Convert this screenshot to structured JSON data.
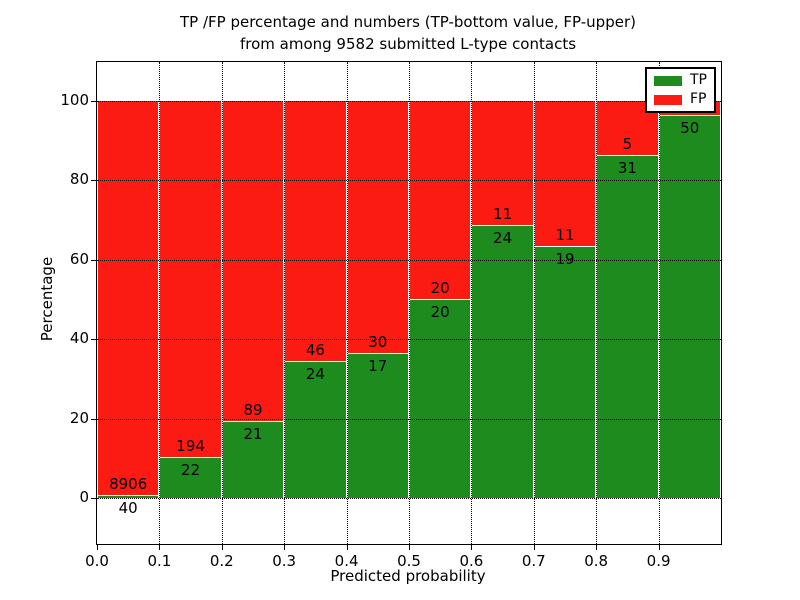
{
  "chart_data": {
    "type": "bar",
    "stacked": true,
    "units": "percent",
    "title_line1": "TP /FP percentage and numbers (TP-bottom value, FP-upper)",
    "title_line2": "from among 9582 submitted L-type contacts",
    "xlabel": "Predicted probability",
    "ylabel": "Percentage",
    "xlim": [
      0.0,
      1.0
    ],
    "ylim": [
      0,
      100
    ],
    "grid": "dotted",
    "legend_position": "upper right",
    "xticks": [
      "0.0",
      "0.1",
      "0.2",
      "0.3",
      "0.4",
      "0.5",
      "0.6",
      "0.7",
      "0.8",
      "0.9"
    ],
    "yticks": [
      {
        "value": 0,
        "label": "0"
      },
      {
        "value": 20,
        "label": "20"
      },
      {
        "value": 40,
        "label": "40"
      },
      {
        "value": 60,
        "label": "60"
      },
      {
        "value": 80,
        "label": "80"
      },
      {
        "value": 100,
        "label": "100"
      }
    ],
    "colors": {
      "tp": "#1e8b1e",
      "fp": "#fb1b12"
    },
    "legend": {
      "items": [
        {
          "label": "TP",
          "color": "#1e8b1e"
        },
        {
          "label": "FP",
          "color": "#fb1b12"
        }
      ]
    },
    "bins": [
      {
        "x_range": "0.0-0.1",
        "tp": 40,
        "fp": 8906,
        "tp_pct": 0.45
      },
      {
        "x_range": "0.1-0.2",
        "tp": 22,
        "fp": 194,
        "tp_pct": 10.19
      },
      {
        "x_range": "0.2-0.3",
        "tp": 21,
        "fp": 89,
        "tp_pct": 19.09
      },
      {
        "x_range": "0.3-0.4",
        "tp": 24,
        "fp": 46,
        "tp_pct": 34.29
      },
      {
        "x_range": "0.4-0.5",
        "tp": 17,
        "fp": 30,
        "tp_pct": 36.17
      },
      {
        "x_range": "0.5-0.6",
        "tp": 20,
        "fp": 20,
        "tp_pct": 50.0
      },
      {
        "x_range": "0.6-0.7",
        "tp": 24,
        "fp": 11,
        "tp_pct": 68.57
      },
      {
        "x_range": "0.7-0.8",
        "tp": 19,
        "fp": 11,
        "tp_pct": 63.33
      },
      {
        "x_range": "0.8-0.9",
        "tp": 31,
        "fp": 5,
        "tp_pct": 86.11
      },
      {
        "x_range": "0.9-1.0",
        "tp": 50,
        "fp": null,
        "tp_pct": 96.15
      }
    ]
  }
}
